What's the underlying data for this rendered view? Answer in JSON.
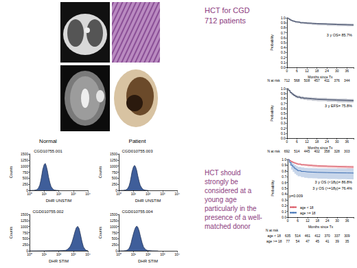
{
  "texts": {
    "title": "HCT for CGD 712 patients",
    "conclusion": "HCT should strongly be considered at a young age particularly in the presence of a well-matched donor",
    "column_labels": [
      "Normal",
      "Patient"
    ]
  },
  "chart_data": [
    {
      "type": "area",
      "title": "CGD10755.001",
      "xlabel": "DHR UNSTIM",
      "ylabel": "Counts",
      "color": "#2a4d8f",
      "log": "x",
      "grid": false,
      "x": [
        1,
        2,
        3,
        4,
        5,
        6,
        7,
        8,
        10,
        12,
        14,
        17,
        20,
        25,
        30,
        40,
        50,
        70,
        100
      ],
      "values": [
        0,
        5,
        25,
        90,
        220,
        420,
        650,
        860,
        1060,
        1110,
        1010,
        800,
        560,
        310,
        160,
        55,
        18,
        4,
        0
      ],
      "xlim": [
        1,
        10000
      ],
      "xticks": [
        {
          "value": 1,
          "label": "10⁰"
        },
        {
          "value": 10,
          "label": "10¹"
        },
        {
          "value": 100,
          "label": "10²"
        },
        {
          "value": 1000,
          "label": "10³"
        },
        {
          "value": 10000,
          "label": "10⁴"
        }
      ],
      "ylim": [
        0,
        1500
      ],
      "yticks": [
        0,
        250,
        500,
        750,
        1000,
        1250,
        1500
      ]
    },
    {
      "type": "area",
      "title": "CGD010755.003",
      "xlabel": "DHR UNSTIM",
      "ylabel": "Counts",
      "color": "#2a4d8f",
      "log": "x",
      "grid": false,
      "x": [
        1,
        2,
        3,
        4,
        5,
        6,
        7,
        8,
        10,
        12,
        14,
        17,
        20,
        25,
        30,
        40,
        50,
        70,
        100
      ],
      "values": [
        0,
        4,
        20,
        70,
        180,
        350,
        560,
        760,
        960,
        1030,
        980,
        820,
        610,
        360,
        200,
        80,
        30,
        8,
        0
      ],
      "xlim": [
        1,
        10000
      ],
      "xticks": [
        {
          "value": 1,
          "label": "10⁰"
        },
        {
          "value": 10,
          "label": "10¹"
        },
        {
          "value": 100,
          "label": "10²"
        },
        {
          "value": 1000,
          "label": "10³"
        },
        {
          "value": 10000,
          "label": "10⁴"
        }
      ],
      "ylim": [
        0,
        1500
      ],
      "yticks": [
        0,
        250,
        500,
        750,
        1000,
        1250,
        1500
      ]
    },
    {
      "type": "area",
      "title": "CGD010755.002",
      "xlabel": "DHR STIM",
      "ylabel": "Counts",
      "color": "#2a4d8f",
      "log": "x",
      "grid": false,
      "x": [
        1,
        3,
        10,
        30,
        100,
        200,
        300,
        400,
        600,
        800,
        1000,
        1300,
        1600,
        2000,
        2500,
        3000,
        4000,
        5000,
        7000,
        10000
      ],
      "values": [
        0,
        2,
        5,
        8,
        10,
        15,
        25,
        60,
        170,
        340,
        540,
        790,
        950,
        1010,
        920,
        720,
        370,
        160,
        35,
        6
      ],
      "xlim": [
        1,
        10000
      ],
      "xticks": [
        {
          "value": 1,
          "label": "10⁰"
        },
        {
          "value": 10,
          "label": "10¹"
        },
        {
          "value": 100,
          "label": "10²"
        },
        {
          "value": 1000,
          "label": "10³"
        },
        {
          "value": 10000,
          "label": "10⁴"
        }
      ],
      "ylim": [
        0,
        1500
      ],
      "yticks": [
        0,
        250,
        500,
        750,
        1000,
        1250,
        1500
      ]
    },
    {
      "type": "area",
      "title": "CGD010755.004",
      "xlabel": "DHR STIM",
      "ylabel": "Counts",
      "color": "#2a4d8f",
      "log": "x",
      "grid": false,
      "x": [
        1,
        2,
        3,
        4,
        5,
        6,
        7,
        8,
        10,
        12,
        14,
        17,
        20,
        25,
        30,
        40,
        50,
        70,
        100,
        200,
        500
      ],
      "values": [
        0,
        3,
        12,
        40,
        100,
        200,
        330,
        480,
        700,
        860,
        960,
        1020,
        980,
        820,
        620,
        330,
        160,
        50,
        15,
        5,
        0
      ],
      "xlim": [
        1,
        10000
      ],
      "xticks": [
        {
          "value": 1,
          "label": "10⁰"
        },
        {
          "value": 10,
          "label": "10¹"
        },
        {
          "value": 100,
          "label": "10²"
        },
        {
          "value": 1000,
          "label": "10³"
        },
        {
          "value": 10000,
          "label": "10⁴"
        }
      ],
      "ylim": [
        0,
        1500
      ],
      "yticks": [
        0,
        250,
        500,
        750,
        1000,
        1250,
        1500
      ]
    },
    {
      "type": "survival",
      "xlabel": "Months since Tx",
      "ylabel": "Probability",
      "grid": false,
      "x": [
        0,
        1,
        2,
        3,
        4,
        5,
        6,
        8,
        10,
        12,
        15,
        18,
        24,
        30,
        36,
        40
      ],
      "series": [
        {
          "color": "#2e3a59",
          "values": [
            1,
            0.975,
            0.955,
            0.94,
            0.93,
            0.92,
            0.912,
            0.902,
            0.896,
            0.89,
            0.882,
            0.876,
            0.868,
            0.862,
            0.857,
            0.853
          ],
          "ci_lower": [
            1,
            0.963,
            0.94,
            0.923,
            0.912,
            0.901,
            0.892,
            0.881,
            0.874,
            0.867,
            0.858,
            0.851,
            0.842,
            0.835,
            0.829,
            0.824
          ],
          "ci_upper": [
            1,
            0.986,
            0.969,
            0.956,
            0.947,
            0.938,
            0.931,
            0.921,
            0.916,
            0.911,
            0.904,
            0.899,
            0.892,
            0.887,
            0.883,
            0.879
          ]
        }
      ],
      "xlim": [
        0,
        40
      ],
      "xticks": [
        0,
        6,
        12,
        18,
        24,
        30,
        36
      ],
      "ylim": [
        0,
        1
      ],
      "yticks": [
        {
          "value": 0,
          "label": "0.0"
        },
        {
          "value": 0.1,
          "label": "0.1"
        },
        {
          "value": 0.2,
          "label": "0.2"
        },
        {
          "value": 0.3,
          "label": "0.3"
        },
        {
          "value": 0.4,
          "label": "0.4"
        },
        {
          "value": 0.5,
          "label": "0.5"
        },
        {
          "value": 0.6,
          "label": "0.6"
        },
        {
          "value": 0.7,
          "label": "0.7"
        },
        {
          "value": 0.8,
          "label": "0.8"
        },
        {
          "value": 0.9,
          "label": "0.9"
        },
        {
          "value": 1,
          "label": "1.0"
        }
      ],
      "annotations": [
        "3 y OS= 85.7%"
      ],
      "risk_table": [
        {
          "label": "N at risk",
          "values": [
            712,
            568,
            508,
            457,
            411,
            376,
            344
          ]
        }
      ]
    },
    {
      "type": "survival",
      "xlabel": "Months since Tx",
      "ylabel": "Probability",
      "grid": false,
      "x": [
        0,
        1,
        2,
        3,
        4,
        5,
        6,
        8,
        10,
        12,
        15,
        18,
        24,
        30,
        36,
        40
      ],
      "series": [
        {
          "color": "#2e3a59",
          "values": [
            1,
            0.96,
            0.92,
            0.89,
            0.866,
            0.846,
            0.83,
            0.815,
            0.805,
            0.796,
            0.787,
            0.779,
            0.77,
            0.763,
            0.758,
            0.753
          ],
          "ci_lower": [
            1,
            0.945,
            0.9,
            0.866,
            0.84,
            0.818,
            0.801,
            0.785,
            0.774,
            0.764,
            0.754,
            0.745,
            0.735,
            0.727,
            0.721,
            0.715
          ],
          "ci_upper": [
            1,
            0.974,
            0.939,
            0.912,
            0.89,
            0.872,
            0.857,
            0.843,
            0.834,
            0.826,
            0.818,
            0.811,
            0.803,
            0.797,
            0.793,
            0.789
          ]
        }
      ],
      "xlim": [
        0,
        40
      ],
      "xticks": [
        0,
        6,
        12,
        18,
        24,
        30,
        36
      ],
      "ylim": [
        0,
        1
      ],
      "yticks": [
        {
          "value": 0,
          "label": "0.0"
        },
        {
          "value": 0.1,
          "label": "0.1"
        },
        {
          "value": 0.2,
          "label": "0.2"
        },
        {
          "value": 0.3,
          "label": "0.3"
        },
        {
          "value": 0.4,
          "label": "0.4"
        },
        {
          "value": 0.5,
          "label": "0.5"
        },
        {
          "value": 0.6,
          "label": "0.6"
        },
        {
          "value": 0.7,
          "label": "0.7"
        },
        {
          "value": 0.8,
          "label": "0.8"
        },
        {
          "value": 0.9,
          "label": "0.9"
        },
        {
          "value": 1,
          "label": "1.0"
        }
      ],
      "annotations": [
        "3 y EFS= 75.8%"
      ],
      "risk_table": [
        {
          "label": "N at risk",
          "values": [
            692,
            514,
            445,
            402,
            358,
            328,
            303
          ]
        }
      ]
    },
    {
      "type": "survival",
      "xlabel": "Months since Tx",
      "ylabel": "Probability",
      "grid": false,
      "legend": "bottom-left",
      "x": [
        0,
        1,
        2,
        3,
        4,
        5,
        6,
        8,
        10,
        12,
        15,
        18,
        24,
        30,
        36,
        40
      ],
      "series": [
        {
          "name": "age < 18",
          "color": "#d94f5c",
          "values": [
            1,
            0.977,
            0.962,
            0.948,
            0.937,
            0.927,
            0.918,
            0.908,
            0.902,
            0.896,
            0.888,
            0.882,
            0.876,
            0.872,
            0.868,
            0.864
          ],
          "ci_lower": [
            1,
            0.965,
            0.947,
            0.931,
            0.919,
            0.908,
            0.898,
            0.887,
            0.88,
            0.873,
            0.864,
            0.857,
            0.85,
            0.845,
            0.84,
            0.835
          ],
          "ci_upper": [
            1,
            0.988,
            0.976,
            0.963,
            0.953,
            0.944,
            0.936,
            0.927,
            0.922,
            0.917,
            0.91,
            0.905,
            0.9,
            0.897,
            0.894,
            0.891
          ]
        },
        {
          "name": "age >= 18",
          "color": "#3b6db3",
          "values": [
            1,
            0.948,
            0.9,
            0.87,
            0.843,
            0.822,
            0.805,
            0.792,
            0.784,
            0.78,
            0.776,
            0.772,
            0.768,
            0.766,
            0.764,
            0.761
          ],
          "ci_lower": [
            1,
            0.89,
            0.825,
            0.786,
            0.753,
            0.728,
            0.707,
            0.692,
            0.682,
            0.677,
            0.672,
            0.667,
            0.662,
            0.659,
            0.656,
            0.652
          ],
          "ci_upper": [
            1,
            0.978,
            0.949,
            0.926,
            0.904,
            0.887,
            0.873,
            0.862,
            0.855,
            0.852,
            0.849,
            0.846,
            0.843,
            0.842,
            0.841,
            0.839
          ]
        }
      ],
      "xlim": [
        0,
        40
      ],
      "xticks": [
        0,
        6,
        12,
        18,
        24,
        30,
        36
      ],
      "ylim": [
        0,
        1
      ],
      "yticks": [
        {
          "value": 0,
          "label": "0.0"
        },
        {
          "value": 0.1,
          "label": "0.1"
        },
        {
          "value": 0.2,
          "label": "0.2"
        },
        {
          "value": 0.3,
          "label": "0.3"
        },
        {
          "value": 0.4,
          "label": "0.4"
        },
        {
          "value": 0.5,
          "label": "0.5"
        },
        {
          "value": 0.6,
          "label": "0.6"
        },
        {
          "value": 0.7,
          "label": "0.7"
        },
        {
          "value": 0.8,
          "label": "0.8"
        },
        {
          "value": 0.9,
          "label": "0.9"
        },
        {
          "value": 1,
          "label": "1.0"
        }
      ],
      "annotations": [
        "3 y OS (<18y)= 86.8%",
        "3 y OS (>=18y)= 76.4%",
        "p=0.009"
      ],
      "risk_header": "N at risk",
      "risk_table": [
        {
          "label": "age < 18",
          "values": [
            635,
            514,
            461,
            412,
            370,
            337,
            309
          ]
        },
        {
          "label": "age >= 18",
          "values": [
            77,
            54,
            47,
            45,
            41,
            39,
            35
          ]
        }
      ]
    }
  ]
}
